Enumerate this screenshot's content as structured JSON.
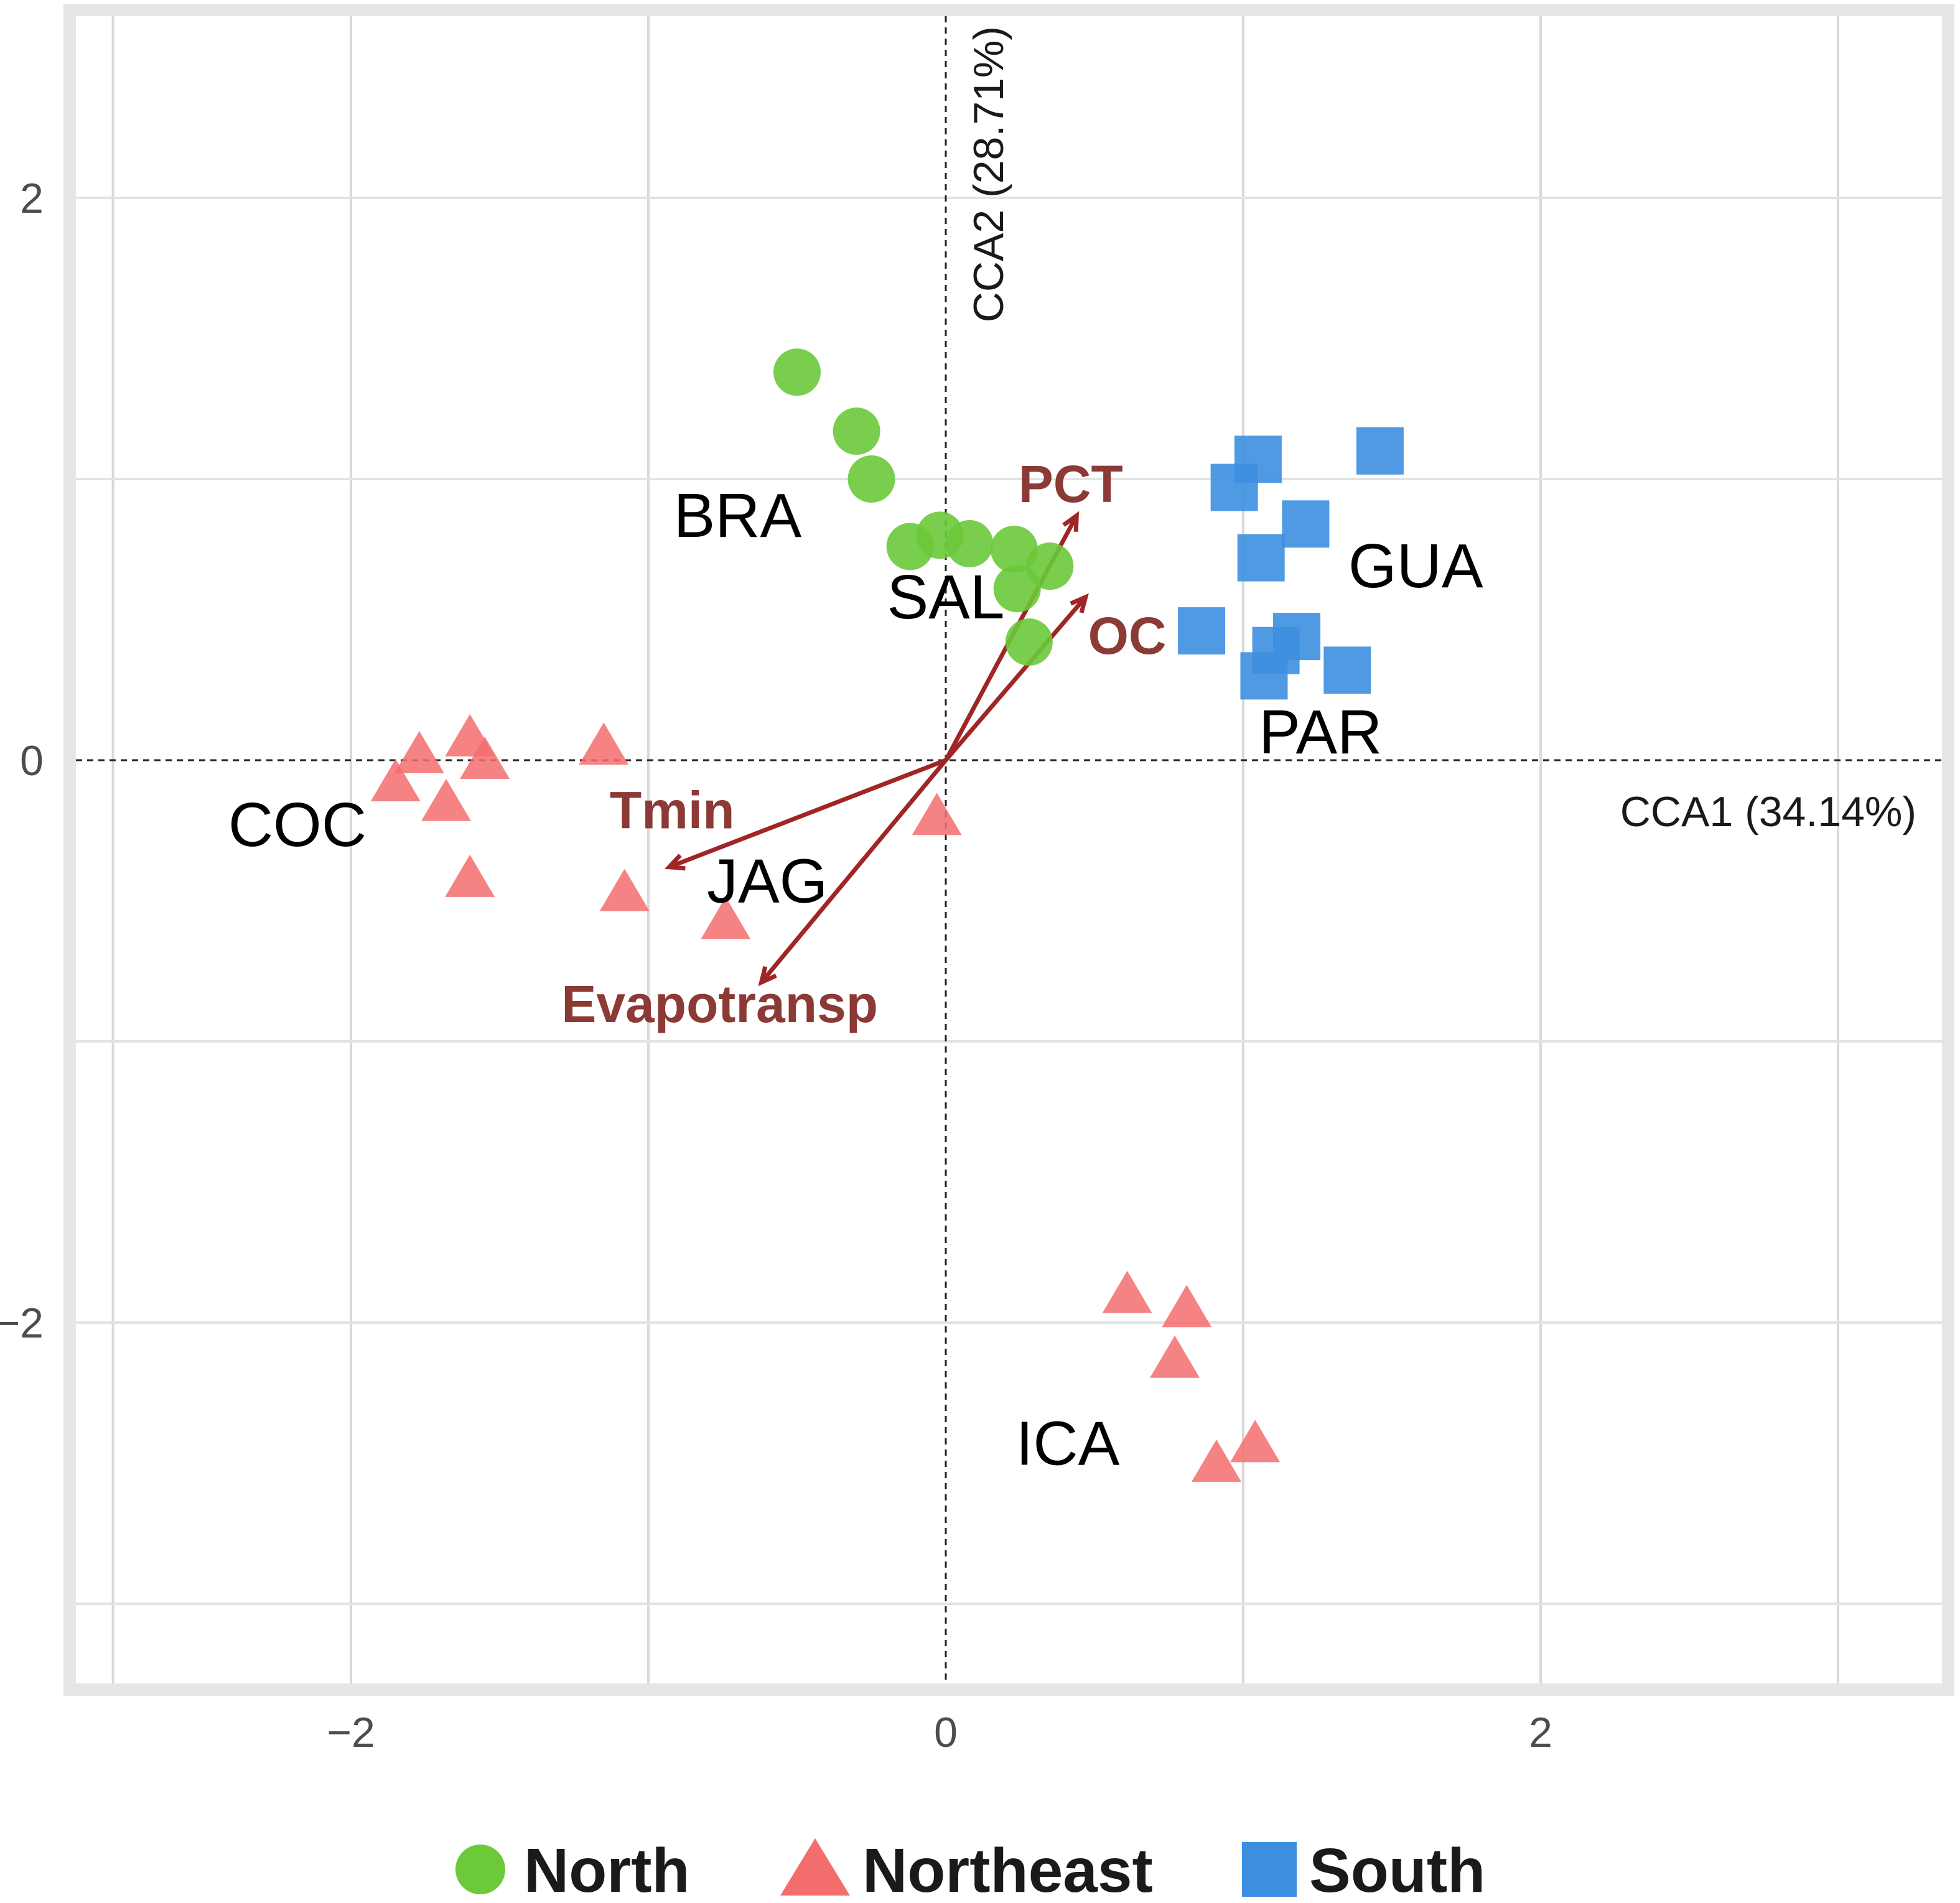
{
  "chart_data": {
    "type": "scatter",
    "title": "",
    "xlabel": "CCA1 (34.14%)",
    "ylabel": "CCA2 (28.71%)",
    "xlim": [
      -2.9,
      3.3
    ],
    "ylim": [
      -3.3,
      2.65
    ],
    "x_ticks": [
      {
        "value": -2,
        "label": "−2"
      },
      {
        "value": 0,
        "label": "0"
      },
      {
        "value": 2,
        "label": "2"
      }
    ],
    "y_ticks": [
      {
        "value": 2,
        "label": "2"
      },
      {
        "value": 0,
        "label": "0"
      },
      {
        "value": -2,
        "label": "−2"
      }
    ],
    "x_gridlines": [
      -2.8,
      -2,
      -1,
      0,
      1,
      2,
      3
    ],
    "y_gridlines": [
      2,
      1,
      0,
      -1,
      -2,
      -3
    ],
    "grid": true,
    "legend_position": "bottom",
    "series": [
      {
        "name": "North",
        "shape": "circle",
        "color": "#6cc93a",
        "points": [
          [
            -0.5,
            1.38
          ],
          [
            -0.3,
            1.17
          ],
          [
            -0.25,
            1.0
          ],
          [
            -0.12,
            0.76
          ],
          [
            -0.02,
            0.8
          ],
          [
            0.08,
            0.77
          ],
          [
            0.23,
            0.75
          ],
          [
            0.35,
            0.69
          ],
          [
            0.24,
            0.61
          ],
          [
            0.28,
            0.42
          ]
        ]
      },
      {
        "name": "Northeast",
        "shape": "triangle",
        "color": "#f46d6d",
        "points": [
          [
            -1.85,
            -0.08
          ],
          [
            -1.77,
            0.02
          ],
          [
            -1.6,
            0.08
          ],
          [
            -1.55,
            0.0
          ],
          [
            -1.68,
            -0.15
          ],
          [
            -1.6,
            -0.42
          ],
          [
            -1.15,
            0.05
          ],
          [
            -1.08,
            -0.47
          ],
          [
            -0.74,
            -0.57
          ],
          [
            -0.03,
            -0.2
          ],
          [
            0.61,
            -1.9
          ],
          [
            0.81,
            -1.95
          ],
          [
            0.77,
            -2.13
          ],
          [
            0.91,
            -2.5
          ],
          [
            1.04,
            -2.43
          ]
        ]
      },
      {
        "name": "South",
        "shape": "square",
        "color": "#3d8fe0",
        "points": [
          [
            1.05,
            1.07
          ],
          [
            0.97,
            0.97
          ],
          [
            1.46,
            1.1
          ],
          [
            1.21,
            0.84
          ],
          [
            1.06,
            0.72
          ],
          [
            0.86,
            0.46
          ],
          [
            1.18,
            0.44
          ],
          [
            1.11,
            0.39
          ],
          [
            1.35,
            0.32
          ],
          [
            1.07,
            0.3
          ]
        ]
      }
    ],
    "site_labels": [
      {
        "text": "BRA",
        "x": -0.7,
        "y": 0.87
      },
      {
        "text": "SAL",
        "x": 0.0,
        "y": 0.58
      },
      {
        "text": "GUA",
        "x": 1.58,
        "y": 0.69
      },
      {
        "text": "PAR",
        "x": 1.26,
        "y": 0.1
      },
      {
        "text": "COC",
        "x": -2.18,
        "y": -0.23
      },
      {
        "text": "JAG",
        "x": -0.6,
        "y": -0.43
      },
      {
        "text": "ICA",
        "x": 0.41,
        "y": -2.43
      }
    ],
    "env_vectors": [
      {
        "name": "PCT",
        "x": 0.44,
        "y": 0.87,
        "label_x": 0.42,
        "label_y": 0.98
      },
      {
        "name": "OC",
        "x": 0.47,
        "y": 0.58,
        "label_x": 0.61,
        "label_y": 0.44
      },
      {
        "name": "Tmin",
        "x": -0.93,
        "y": -0.38,
        "label_x": -0.92,
        "label_y": -0.18
      },
      {
        "name": "Evapotransp",
        "x": -0.62,
        "y": -0.79,
        "label_x": -0.76,
        "label_y": -0.87
      }
    ],
    "vector_color": "#a02525",
    "vector_label_color": "#8b3a35"
  }
}
